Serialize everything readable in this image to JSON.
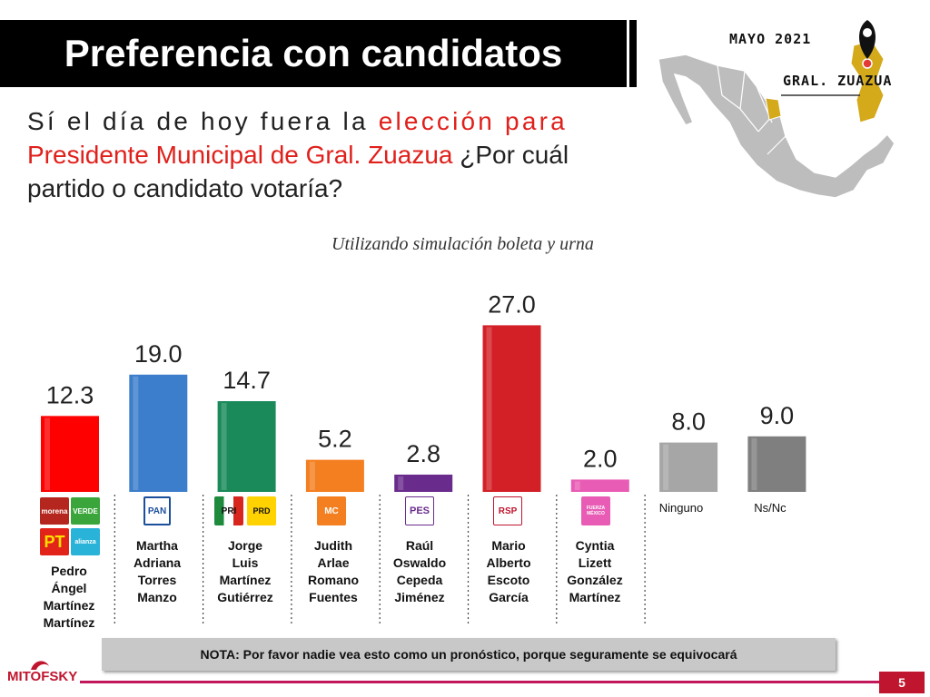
{
  "header": {
    "title": "Preferencia con candidatos"
  },
  "question": {
    "line1_a": "Sí el día de hoy fuera la ",
    "line1_b": "elección para",
    "line2_a": "Presidente Municipal de Gral. Zuazua",
    "line2_b": " ¿Por cuál",
    "line3": "partido o candidato votaría?"
  },
  "map": {
    "date": "MAYO 2021",
    "city": "GRAL. ZUAZUA"
  },
  "chart_data": {
    "type": "bar",
    "subtitle": "Utilizando simulación boleta y urna",
    "categories": [
      "Pedro Ángel Martínez Martínez",
      "Martha Adriana Torres Manzo",
      "Jorge Luis Martínez Gutiérrez",
      "Judith Arlae Romano Fuentes",
      "Raúl Oswaldo Cepeda Jiménez",
      "Mario Alberto Escoto García",
      "Cyntia Lizett González Martínez",
      "Ninguno",
      "Ns/Nc"
    ],
    "values": [
      12.3,
      19.0,
      14.7,
      5.2,
      2.8,
      27.0,
      2.0,
      8.0,
      9.0
    ],
    "value_labels": [
      "12.3",
      "19.0",
      "14.7",
      "5.2",
      "2.8",
      "27.0",
      "2.0",
      "8.0",
      "9.0"
    ],
    "colors": [
      "#ff0000",
      "#3c7ecb",
      "#1a8a5a",
      "#f47f20",
      "#6a2c8c",
      "#d32027",
      "#e85cb5",
      "#a6a6a6",
      "#7f7f7f"
    ],
    "ylim": [
      0,
      30
    ]
  },
  "candidates": [
    {
      "name_lines": [
        "Pedro",
        "Ángel",
        "Martínez",
        "Martínez"
      ],
      "logos": [
        "morena",
        "VERDE",
        "PT",
        "alianza"
      ]
    },
    {
      "name_lines": [
        "Martha",
        "Adriana",
        "Torres",
        "Manzo"
      ],
      "logos": [
        "PAN"
      ]
    },
    {
      "name_lines": [
        "Jorge",
        "Luis",
        "Martínez",
        "Gutiérrez"
      ],
      "logos": [
        "PRI",
        "PRD"
      ]
    },
    {
      "name_lines": [
        "Judith",
        "Arlae",
        "Romano",
        "Fuentes"
      ],
      "logos": [
        "MC"
      ]
    },
    {
      "name_lines": [
        "Raúl",
        "Oswaldo",
        "Cepeda",
        "Jiménez"
      ],
      "logos": [
        "PES"
      ]
    },
    {
      "name_lines": [
        "Mario",
        "Alberto",
        "Escoto",
        "García"
      ],
      "logos": [
        "RSP"
      ]
    },
    {
      "name_lines": [
        "Cyntia",
        "Lizett",
        "González",
        "Martínez"
      ],
      "logos": [
        "FUERZA MÉXICO"
      ]
    }
  ],
  "category_labels": {
    "ninguno": "Ninguno",
    "nsnc": "Ns/Nc"
  },
  "note": "NOTA: Por favor nadie vea esto como un pronóstico, porque seguramente se equivocará",
  "footer": {
    "brand": "MITOFSKY",
    "page": "5"
  }
}
